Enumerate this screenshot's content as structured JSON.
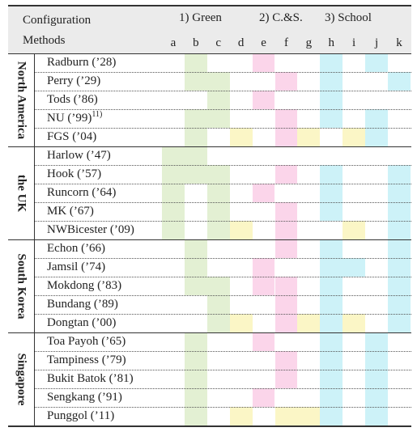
{
  "header": {
    "title_line1": "Configuration",
    "title_line2": "Methods",
    "groups": [
      "1) Green",
      "2) C.&S.",
      "3) School"
    ],
    "columns": [
      "a",
      "b",
      "c",
      "d",
      "e",
      "f",
      "g",
      "h",
      "i",
      "j",
      "k"
    ]
  },
  "colors": {
    "green": "#e3f0d3",
    "pink": "#fbd5ea",
    "yellow": "#fbf6c6",
    "blue": "#cdf2f8",
    "header_bg": "#ebebeb"
  },
  "regions": [
    {
      "name": "North America",
      "rows": [
        {
          "label": "Radburn ('28)",
          "cells": [
            "",
            "G",
            "",
            "",
            "P",
            "",
            "",
            "B",
            "",
            "B",
            ""
          ]
        },
        {
          "label": "Perry ('29)",
          "cells": [
            "",
            "G",
            "G",
            "",
            "",
            "P",
            "",
            "B",
            "",
            "",
            "B"
          ]
        },
        {
          "label": "Tods ('86)",
          "cells": [
            "",
            "",
            "G",
            "",
            "P",
            "",
            "",
            "B",
            "",
            "",
            ""
          ]
        },
        {
          "label": "NU ('99)",
          "sup": "11)",
          "cells": [
            "",
            "G",
            "G",
            "",
            "",
            "P",
            "",
            "B",
            "",
            "B",
            ""
          ]
        },
        {
          "label": "FGS ('04)",
          "cells": [
            "",
            "G",
            "",
            "Y",
            "",
            "P",
            "Y",
            "",
            "Y",
            "B",
            ""
          ]
        }
      ]
    },
    {
      "name": "the UK",
      "rows": [
        {
          "label": "Harlow ('47)",
          "cells": [
            "G",
            "G",
            "",
            "",
            "",
            "",
            "",
            "",
            "",
            "",
            ""
          ]
        },
        {
          "label": "Hook ('57)",
          "cells": [
            "G",
            "G",
            "G",
            "",
            "",
            "P",
            "",
            "B",
            "",
            "",
            "B"
          ]
        },
        {
          "label": "Runcorn ('64)",
          "cells": [
            "G",
            "",
            "G",
            "",
            "P",
            "",
            "",
            "B",
            "",
            "",
            "B"
          ]
        },
        {
          "label": "MK ('67)",
          "cells": [
            "G",
            "",
            "G",
            "",
            "",
            "P",
            "",
            "B",
            "",
            "",
            "B"
          ]
        },
        {
          "label": "NWBicester ('09)",
          "cells": [
            "G",
            "",
            "G",
            "Y",
            "",
            "P",
            "",
            "",
            "Y",
            "",
            "B"
          ]
        }
      ]
    },
    {
      "name": "South Korea",
      "rows": [
        {
          "label": "Echon ('66)",
          "cells": [
            "",
            "G",
            "",
            "",
            "",
            "P",
            "",
            "B",
            "",
            "",
            "B"
          ]
        },
        {
          "label": "Jamsil ('74)",
          "cells": [
            "",
            "G",
            "",
            "",
            "P",
            "",
            "",
            "B",
            "B",
            "",
            "B"
          ]
        },
        {
          "label": "Mokdong ('83)",
          "cells": [
            "",
            "G",
            "G",
            "",
            "P",
            "P",
            "",
            "B",
            "",
            "",
            "B"
          ]
        },
        {
          "label": "Bundang ('89)",
          "cells": [
            "",
            "",
            "G",
            "",
            "",
            "P",
            "",
            "B",
            "",
            "",
            "B"
          ]
        },
        {
          "label": "Dongtan ('00)",
          "cells": [
            "",
            "",
            "G",
            "Y",
            "",
            "P",
            "Y",
            "B",
            "Y",
            "",
            "B"
          ]
        }
      ]
    },
    {
      "name": "Singapore",
      "rows": [
        {
          "label": "Toa Payoh ('65)",
          "cells": [
            "",
            "G",
            "",
            "",
            "P",
            "",
            "",
            "B",
            "",
            "B",
            ""
          ]
        },
        {
          "label": "Tampiness ('79)",
          "cells": [
            "",
            "G",
            "",
            "",
            "",
            "P",
            "",
            "B",
            "",
            "B",
            ""
          ]
        },
        {
          "label": "Bukit Batok ('81)",
          "cells": [
            "",
            "G",
            "",
            "",
            "",
            "P",
            "",
            "B",
            "",
            "B",
            ""
          ]
        },
        {
          "label": "Sengkang ('91)",
          "cells": [
            "",
            "G",
            "",
            "",
            "P",
            "",
            "",
            "B",
            "",
            "B",
            ""
          ]
        },
        {
          "label": "Punggol ('11)",
          "cells": [
            "",
            "G",
            "",
            "Y",
            "",
            "Y",
            "Y",
            "B",
            "",
            "B",
            ""
          ]
        }
      ]
    }
  ]
}
